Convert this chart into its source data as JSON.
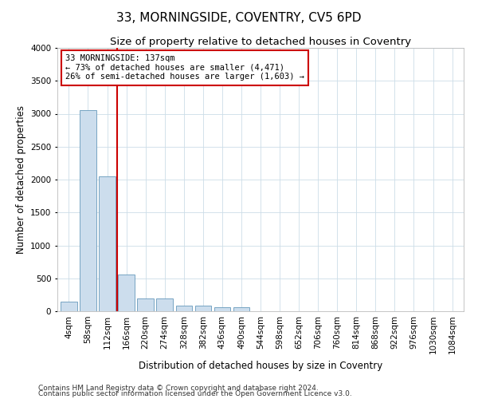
{
  "title": "33, MORNINGSIDE, COVENTRY, CV5 6PD",
  "subtitle": "Size of property relative to detached houses in Coventry",
  "xlabel": "Distribution of detached houses by size in Coventry",
  "ylabel": "Number of detached properties",
  "categories": [
    "4sqm",
    "58sqm",
    "112sqm",
    "166sqm",
    "220sqm",
    "274sqm",
    "328sqm",
    "382sqm",
    "436sqm",
    "490sqm",
    "544sqm",
    "598sqm",
    "652sqm",
    "706sqm",
    "760sqm",
    "814sqm",
    "868sqm",
    "922sqm",
    "976sqm",
    "1030sqm",
    "1084sqm"
  ],
  "values": [
    150,
    3050,
    2050,
    560,
    200,
    200,
    80,
    80,
    60,
    60,
    0,
    0,
    0,
    0,
    0,
    0,
    0,
    0,
    0,
    0,
    0
  ],
  "bar_color": "#ccdded",
  "bar_edge_color": "#6699bb",
  "annotation_text": "33 MORNINGSIDE: 137sqm\n← 73% of detached houses are smaller (4,471)\n26% of semi-detached houses are larger (1,603) →",
  "annotation_box_color": "#ffffff",
  "annotation_box_edge": "#cc0000",
  "ylim": [
    0,
    4000
  ],
  "yticks": [
    0,
    500,
    1000,
    1500,
    2000,
    2500,
    3000,
    3500,
    4000
  ],
  "footer1": "Contains HM Land Registry data © Crown copyright and database right 2024.",
  "footer2": "Contains public sector information licensed under the Open Government Licence v3.0.",
  "background_color": "#ffffff",
  "grid_color": "#ccdde8",
  "title_fontsize": 11,
  "subtitle_fontsize": 9.5,
  "axis_label_fontsize": 8.5,
  "tick_fontsize": 7.5,
  "footer_fontsize": 6.5
}
